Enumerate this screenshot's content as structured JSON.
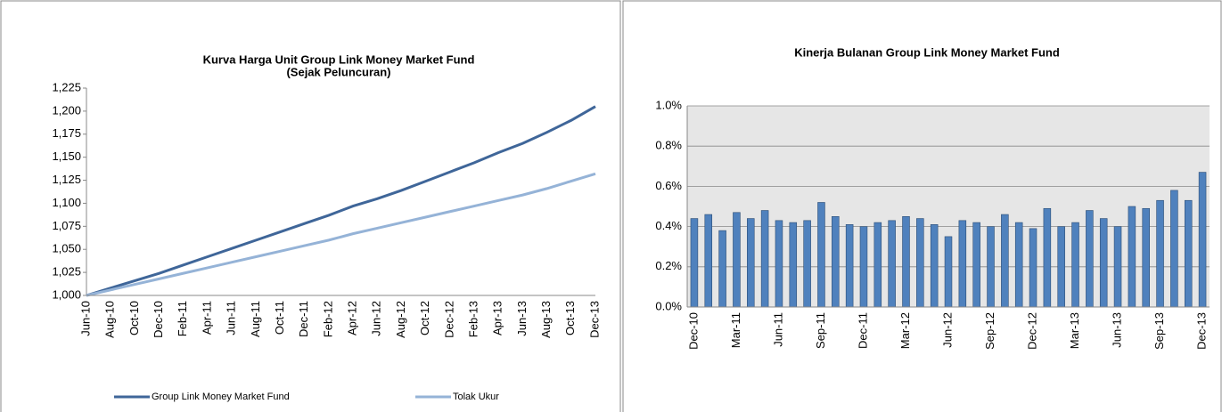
{
  "chart_data": [
    {
      "type": "line",
      "title": "Kurva Harga Unit Group Link Money Market Fund",
      "subtitle": "(Sejak Peluncuran)",
      "categories": [
        "Jun-10",
        "Aug-10",
        "Oct-10",
        "Dec-10",
        "Feb-11",
        "Apr-11",
        "Jun-11",
        "Aug-11",
        "Oct-11",
        "Dec-11",
        "Feb-12",
        "Apr-12",
        "Jun-12",
        "Aug-12",
        "Oct-12",
        "Dec-12",
        "Feb-13",
        "Apr-13",
        "Jun-13",
        "Aug-13",
        "Oct-13",
        "Dec-13"
      ],
      "series": [
        {
          "name": "Group Link Money Market Fund",
          "color": "#3f6699",
          "values": [
            1000,
            1008,
            1016,
            1024,
            1033,
            1042,
            1051,
            1060,
            1069,
            1078,
            1087,
            1097,
            1105,
            1114,
            1124,
            1134,
            1144,
            1155,
            1165,
            1177,
            1190,
            1205
          ]
        },
        {
          "name": "Tolak Ukur",
          "color": "#95b3d7",
          "values": [
            1000,
            1006,
            1012,
            1018,
            1024,
            1030,
            1036,
            1042,
            1048,
            1054,
            1060,
            1067,
            1073,
            1079,
            1085,
            1091,
            1097,
            1103,
            1109,
            1116,
            1124,
            1132
          ]
        }
      ],
      "ylim": [
        1000,
        1225
      ],
      "yticks": [
        {
          "value": 1000,
          "label": "1,000"
        },
        {
          "value": 1025,
          "label": "1,025"
        },
        {
          "value": 1050,
          "label": "1,050"
        },
        {
          "value": 1075,
          "label": "1,075"
        },
        {
          "value": 1100,
          "label": "1,100"
        },
        {
          "value": 1125,
          "label": "1,125"
        },
        {
          "value": 1150,
          "label": "1,150"
        },
        {
          "value": 1175,
          "label": "1,175"
        },
        {
          "value": 1200,
          "label": "1,200"
        },
        {
          "value": 1225,
          "label": "1,225"
        }
      ],
      "legend": "bottom"
    },
    {
      "type": "bar",
      "title": "Kinerja Bulanan Group Link Money Market Fund",
      "categories": [
        "Dec-10",
        null,
        null,
        "Mar-11",
        null,
        null,
        "Jun-11",
        null,
        null,
        "Sep-11",
        null,
        null,
        "Dec-11",
        null,
        null,
        "Mar-12",
        null,
        null,
        "Jun-12",
        null,
        null,
        "Sep-12",
        null,
        null,
        "Dec-12",
        null,
        null,
        "Mar-13",
        null,
        null,
        "Jun-13",
        null,
        null,
        "Sep-13",
        null,
        null,
        "Dec-13"
      ],
      "values": [
        0.44,
        0.46,
        0.38,
        0.47,
        0.44,
        0.48,
        0.43,
        0.42,
        0.43,
        0.52,
        0.45,
        0.41,
        0.4,
        0.42,
        0.43,
        0.45,
        0.44,
        0.41,
        0.35,
        0.43,
        0.42,
        0.4,
        0.46,
        0.42,
        0.39,
        0.49,
        0.4,
        0.42,
        0.48,
        0.44,
        0.4,
        0.5,
        0.49,
        0.53,
        0.58,
        0.53,
        0.67
      ],
      "color": "#4f81bd",
      "ylim": [
        0,
        1
      ],
      "yticks": [
        {
          "value": 0,
          "label": "0.0%"
        },
        {
          "value": 0.2,
          "label": "0.2%"
        },
        {
          "value": 0.4,
          "label": "0.4%"
        },
        {
          "value": 0.6,
          "label": "0.6%"
        },
        {
          "value": 0.8,
          "label": "0.8%"
        },
        {
          "value": 1,
          "label": "1.0%"
        }
      ],
      "grid": true
    }
  ]
}
